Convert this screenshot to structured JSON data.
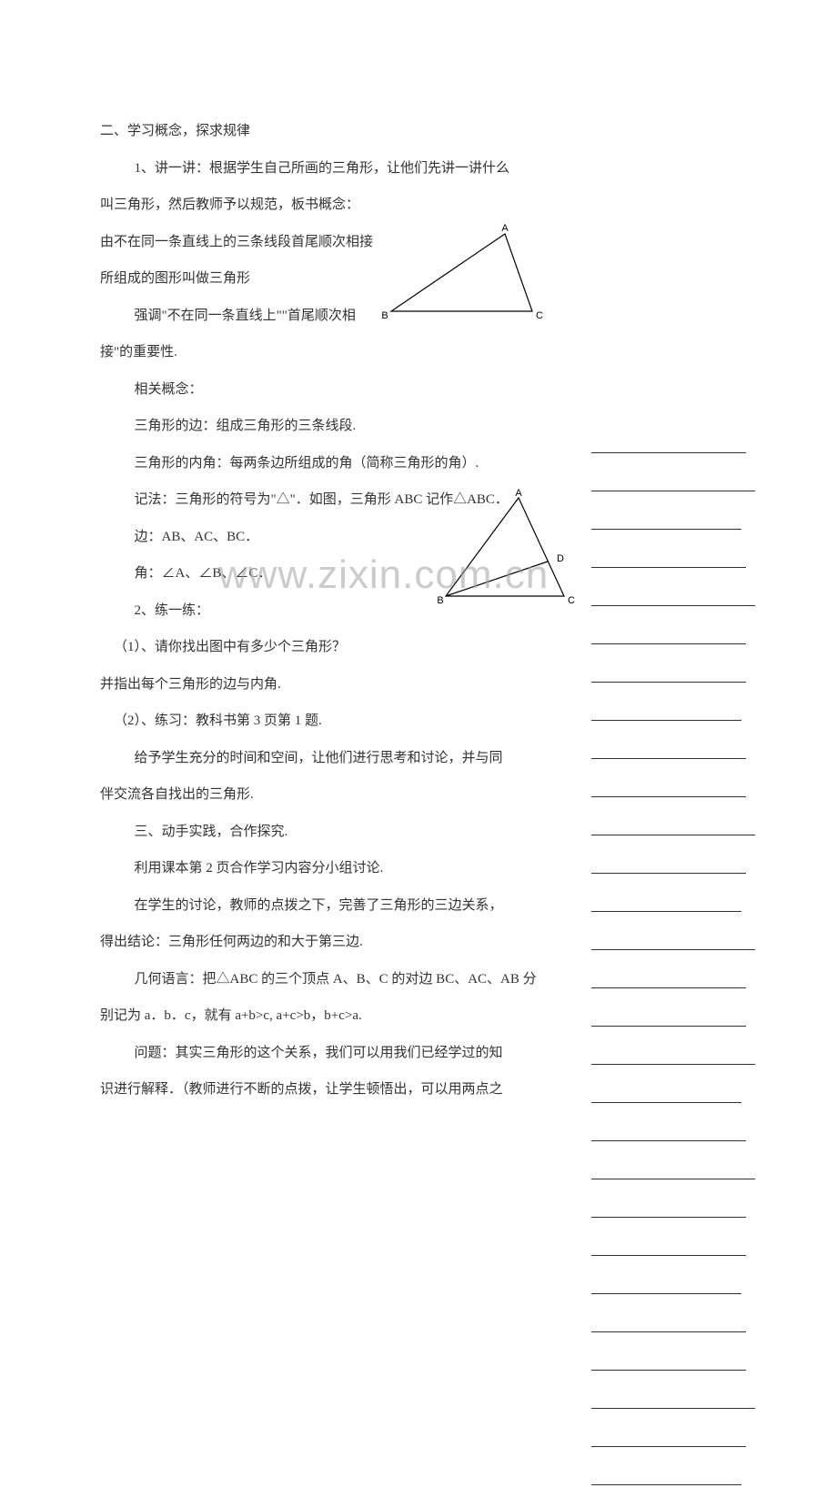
{
  "section2": {
    "title": "二、学习概念，探求规律",
    "p1": "1、讲一讲：根据学生自己所画的三角形，让他们先讲一讲什么",
    "p2": "叫三角形，然后教师予以规范，板书概念：",
    "p3": "由不在同一条直线上的三条线段首尾顺次相接",
    "p4": "所组成的图形叫做三角形",
    "p5": "强调\"不在同一条直线上\"\"首尾顺次相",
    "p6": "接\"的重要性.",
    "p7": "相关概念：",
    "p8": "三角形的边：组成三角形的三条线段.",
    "p9": "三角形的内角：每两条边所组成的角（简称三角形的角）.",
    "p10": "记法：三角形的符号为\"△\"．如图，三角形 ABC 记作△ABC．",
    "p11": "边：AB、AC、BC．",
    "p12": "角：∠A、∠B、∠C．",
    "p13": "2、练一练：",
    "q1": "（1）、请你找出图中有多少个三角形？",
    "q1b": "并指出每个三角形的边与内角.",
    "q2": "（2）、练习：教科书第 3 页第 1 题.",
    "p14": "给予学生充分的时间和空间，让他们进行思考和讨论，并与同",
    "p15": "伴交流各自找出的三角形."
  },
  "section3": {
    "title": "三、动手实践，合作探究.",
    "p1": "利用课本第 2 页合作学习内容分小组讨论.",
    "p2": "在学生的讨论，教师的点拨之下，完善了三角形的三边关系，",
    "p3": "得出结论：三角形任何两边的和大于第三边.",
    "p4": "几何语言：把△ABC 的三个顶点 A、B、C 的对边 BC、AC、AB 分",
    "p5": "别记为 a．b．c，就有 a+b>c, a+c>b，b+c>a.",
    "p6": "问题：其实三角形的这个关系，我们可以用我们已经学过的知",
    "p7": "识进行解释．（教师进行不断的点拨，让学生顿悟出，可以用两点之"
  },
  "watermark": "www.zixin.com.cn",
  "triangle1": {
    "stroke": "#000000",
    "labels": {
      "A": "A",
      "B": "B",
      "C": "C"
    },
    "label_fontsize": 11,
    "label_font": "Arial"
  },
  "triangle2": {
    "stroke": "#000000",
    "labels": {
      "A": "A",
      "B": "B",
      "C": "C",
      "D": "D"
    },
    "label_fontsize": 11,
    "label_font": "Arial"
  },
  "blank_count": 28,
  "colors": {
    "text": "#333333",
    "background": "#ffffff",
    "line": "#333333"
  }
}
